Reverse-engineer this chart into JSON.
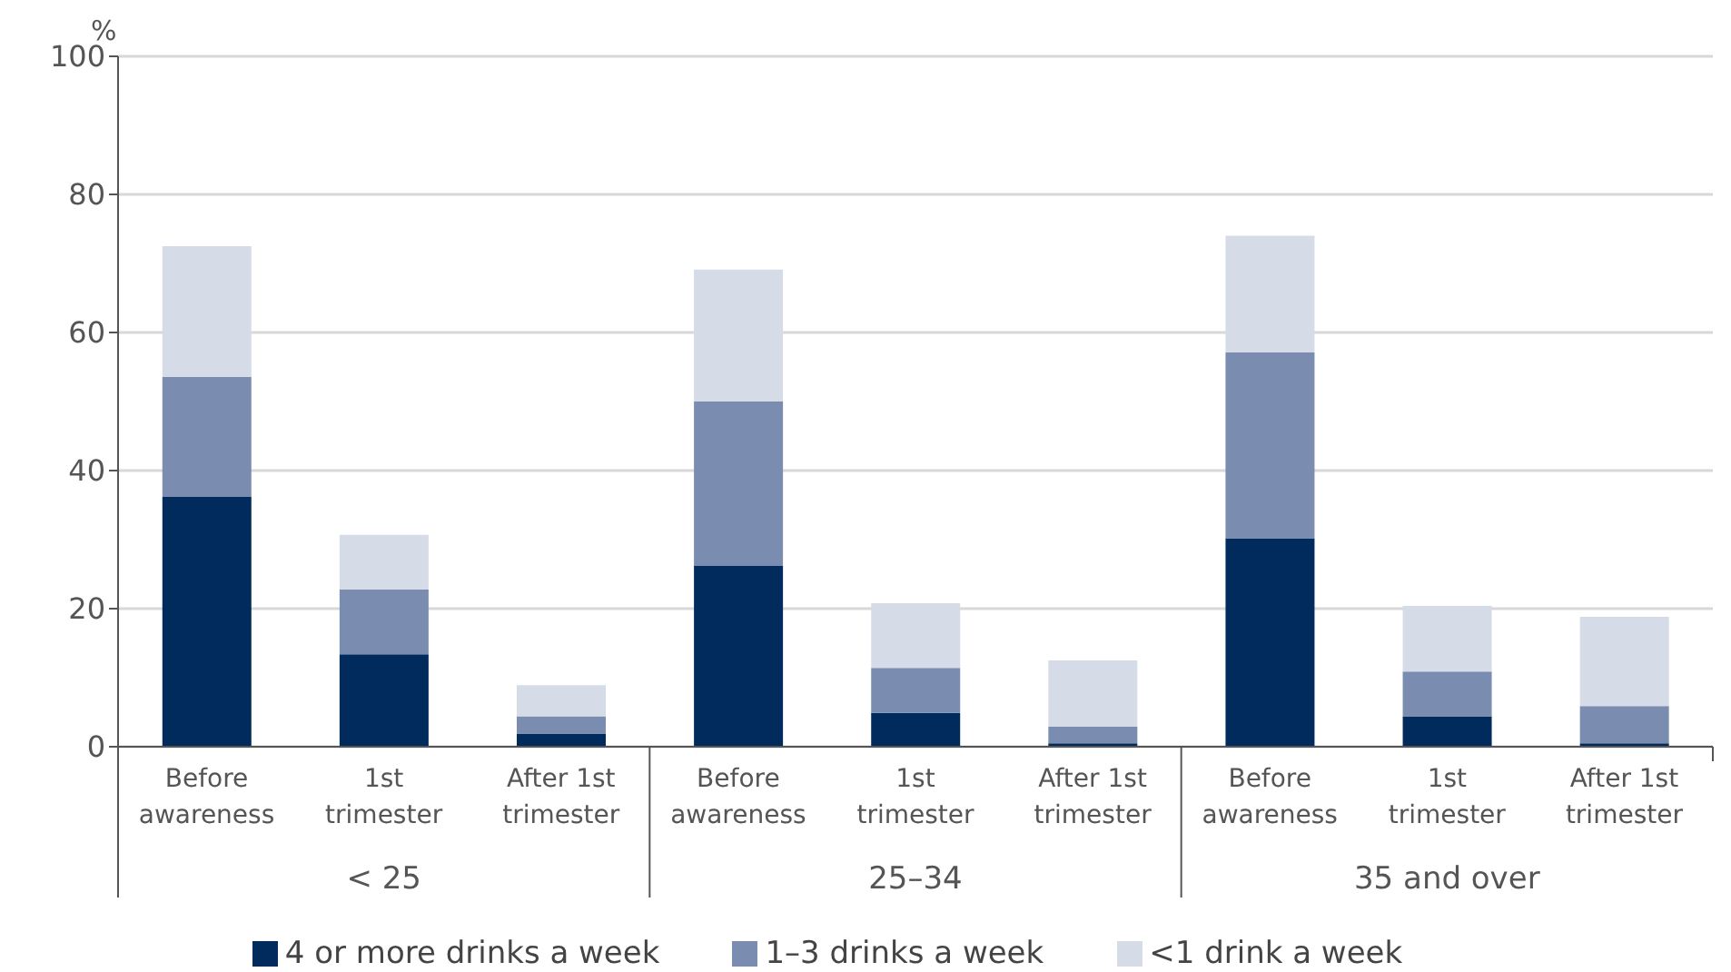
{
  "chart_data": {
    "type": "bar",
    "stacked": true,
    "ylabel": "%",
    "categories": [
      "Before awareness",
      "1st trimester",
      "After 1st trimester",
      "Before awareness",
      "1st trimester",
      "After 1st trimester",
      "Before awareness",
      "1st trimester",
      "After 1st trimester"
    ],
    "annotations": [
      "< 25",
      "25–34",
      "35 and over"
    ],
    "series": [
      {
        "name": "4 or more drinks a week",
        "color": "#002b5c",
        "values": [
          36.2,
          13.4,
          1.9,
          26.2,
          4.9,
          0.5,
          30.2,
          4.4,
          0.5
        ]
      },
      {
        "name": "1–3 drinks a week",
        "color": "#7a8db0",
        "values": [
          17.4,
          9.4,
          2.5,
          23.8,
          6.5,
          2.4,
          26.9,
          6.5,
          5.4
        ]
      },
      {
        "name": "<1 drink a week",
        "color": "#d5dce8",
        "values": [
          18.9,
          7.9,
          4.5,
          19.1,
          9.4,
          9.6,
          16.9,
          9.5,
          12.9
        ]
      }
    ],
    "ylim": [
      0,
      100
    ],
    "yticks": [
      0,
      20,
      40,
      60,
      80,
      100
    ],
    "grid": "y",
    "legend": "bottom"
  }
}
